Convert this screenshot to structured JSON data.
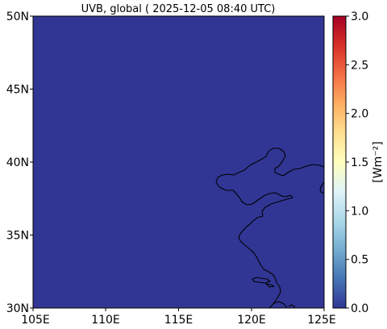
{
  "title": "UVB, global ( 2025-12-05 08:40 UTC)",
  "map": {
    "x_ticks": [
      "105E",
      "110E",
      "115E",
      "120E",
      "125E"
    ],
    "y_ticks": [
      "50N",
      "45N",
      "40N",
      "35N",
      "30N"
    ],
    "lon_range": [
      105,
      125
    ],
    "lat_range": [
      30,
      50
    ],
    "field_color": "#313695",
    "coast_color": "#000000"
  },
  "colorbar": {
    "label": "[Wm⁻²]",
    "ticks": [
      "3.0",
      "2.5",
      "2.0",
      "1.5",
      "1.0",
      "0.5",
      "0.0"
    ],
    "range": [
      0,
      3
    ],
    "colormap": "RdYlBu_r",
    "stops": [
      "#313695",
      "#4575b4",
      "#74add1",
      "#abd9e9",
      "#e0f3f8",
      "#ffffbf",
      "#fee090",
      "#fdae61",
      "#f46d43",
      "#d73027",
      "#a50026"
    ]
  },
  "chart_data": {
    "type": "heatmap",
    "title": "UVB, global ( 2025-12-05 08:40 UTC)",
    "xlim": [
      105,
      125
    ],
    "ylim": [
      30,
      50
    ],
    "value_range": [
      0.0,
      3.0
    ],
    "field_value": 0.0,
    "colorbar_label": "[Wm⁻²]"
  }
}
